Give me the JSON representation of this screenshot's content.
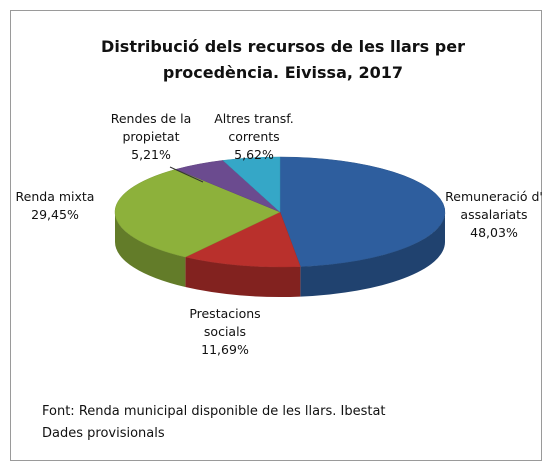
{
  "chart_data": {
    "type": "pie3d",
    "title": "Distribució dels recursos de les llars per procedència. Eivissa, 2017",
    "categories": [
      "Remuneració d' assalariats",
      "Prestacions socials",
      "Renda mixta",
      "Rendes de la propietat",
      "Altres transf. corrents"
    ],
    "values": [
      48.03,
      11.69,
      29.45,
      5.21,
      5.62
    ],
    "value_labels": [
      "48,03%",
      "11,69%",
      "29,45%",
      "5,21%",
      "5,62%"
    ],
    "colors": [
      "#2e5e9e",
      "#b9302c",
      "#8db13b",
      "#6b4b8f",
      "#35a7c7"
    ],
    "notes": [
      "Font: Renda municipal disponible de les llars. Ibestat",
      "Dades provisionals"
    ]
  }
}
